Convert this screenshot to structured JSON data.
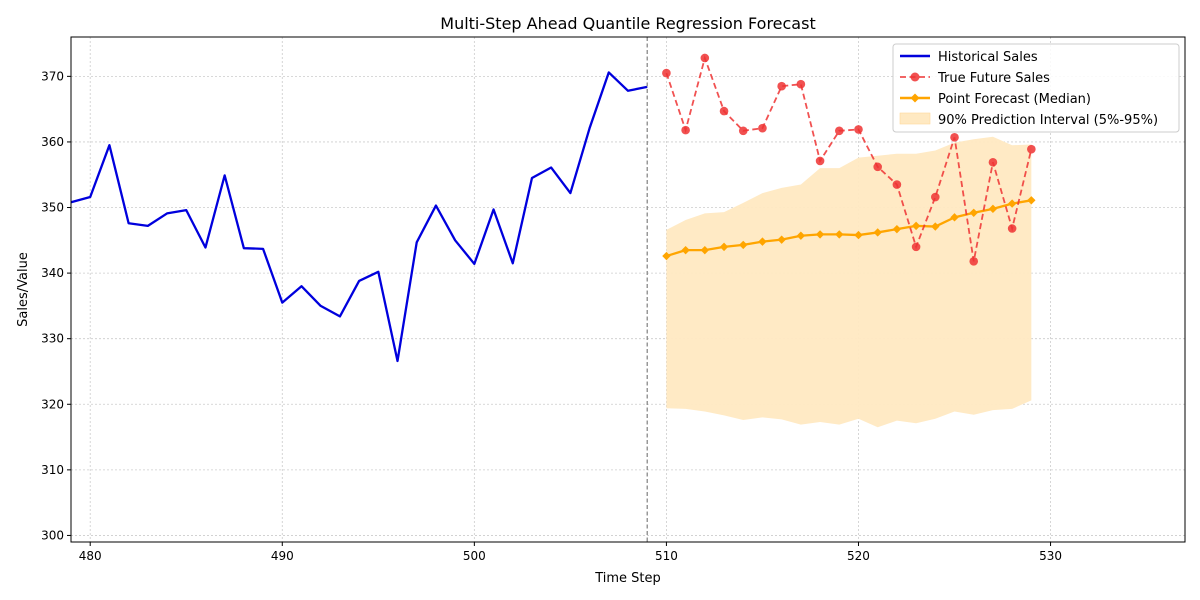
{
  "chart_data": {
    "type": "line",
    "title": "Multi-Step Ahead Quantile Regression Forecast",
    "xlabel": "Time Step",
    "ylabel": "Sales/Value",
    "xlim": [
      479,
      537
    ],
    "ylim": [
      299,
      376
    ],
    "xticks": [
      480,
      490,
      500,
      510,
      520,
      530
    ],
    "yticks": [
      300,
      310,
      320,
      330,
      340,
      350,
      360,
      370
    ],
    "grid": true,
    "legend_position": "top-right",
    "forecast_start_line": 509,
    "colors": {
      "historical": "#0000dd",
      "true_future": "#ee3333",
      "forecast": "#ffa500",
      "interval": "#ffe9c2",
      "grid": "#cccccc",
      "vline": "#808080"
    },
    "series": [
      {
        "name": "Historical Sales",
        "style": "solid-line",
        "x": [
          479,
          480,
          481,
          482,
          483,
          484,
          485,
          486,
          487,
          488,
          489,
          490,
          491,
          492,
          493,
          494,
          495,
          496,
          497,
          498,
          499,
          500,
          501,
          502,
          503,
          504,
          505,
          506,
          507,
          508,
          509
        ],
        "values": [
          350.8,
          351.6,
          359.5,
          347.6,
          347.2,
          349.1,
          349.6,
          343.9,
          354.9,
          343.8,
          343.7,
          335.5,
          338.0,
          335.0,
          333.4,
          338.8,
          340.2,
          326.6,
          344.7,
          350.3,
          345.0,
          341.4,
          349.7,
          341.5,
          354.5,
          356.1,
          352.2,
          362.1,
          370.6,
          367.8,
          368.4
        ]
      },
      {
        "name": "True Future Sales",
        "style": "dashed-line-markers",
        "x": [
          510,
          511,
          512,
          513,
          514,
          515,
          516,
          517,
          518,
          519,
          520,
          521,
          522,
          523,
          524,
          525,
          526,
          527,
          528,
          529
        ],
        "values": [
          370.5,
          361.8,
          372.8,
          364.7,
          361.7,
          362.1,
          368.5,
          368.8,
          357.1,
          361.7,
          361.9,
          356.2,
          353.5,
          344.0,
          351.6,
          360.7,
          341.8,
          356.9,
          346.8,
          358.9
        ]
      },
      {
        "name": "Point Forecast (Median)",
        "style": "solid-line-markers",
        "x": [
          510,
          511,
          512,
          513,
          514,
          515,
          516,
          517,
          518,
          519,
          520,
          521,
          522,
          523,
          524,
          525,
          526,
          527,
          528,
          529
        ],
        "values": [
          342.6,
          343.5,
          343.5,
          344.0,
          344.3,
          344.8,
          345.1,
          345.7,
          345.9,
          345.9,
          345.8,
          346.2,
          346.7,
          347.2,
          347.1,
          348.5,
          349.2,
          349.8,
          350.6,
          351.1
        ]
      }
    ],
    "interval": {
      "name": "90% Prediction Interval (5%-95%)",
      "x": [
        510,
        511,
        512,
        513,
        514,
        515,
        516,
        517,
        518,
        519,
        520,
        521,
        522,
        523,
        524,
        525,
        526,
        527,
        528,
        529
      ],
      "lower": [
        319.4,
        319.3,
        318.9,
        318.3,
        317.6,
        318.0,
        317.7,
        316.9,
        317.3,
        316.9,
        317.8,
        316.5,
        317.5,
        317.1,
        317.8,
        318.9,
        318.4,
        319.1,
        319.3,
        320.6
      ],
      "upper": [
        346.6,
        348.1,
        349.1,
        349.3,
        350.7,
        352.2,
        353.0,
        353.5,
        356.0,
        356.0,
        357.6,
        357.9,
        358.2,
        358.2,
        358.7,
        359.9,
        360.4,
        360.8,
        359.5,
        359.6
      ]
    }
  }
}
